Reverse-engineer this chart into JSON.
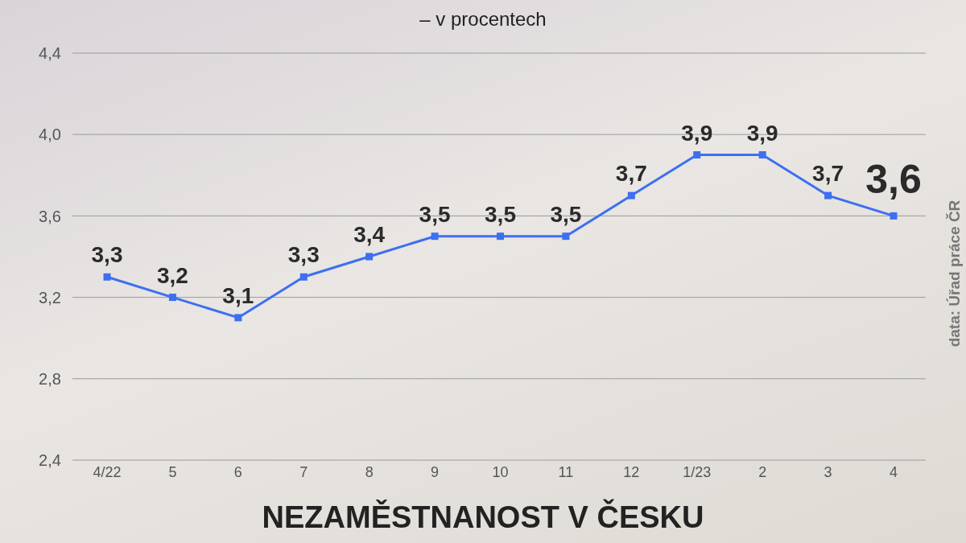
{
  "chart_data": {
    "type": "line",
    "title": "NEZAMĚSTNANOST V ČESKU",
    "subtitle": "– v procentech",
    "categories": [
      "4/22",
      "5",
      "6",
      "7",
      "8",
      "9",
      "10",
      "11",
      "12",
      "1/23",
      "2",
      "3",
      "4"
    ],
    "series": [
      {
        "color": "#3d6ff0",
        "values": [
          3.3,
          3.2,
          3.1,
          3.3,
          3.4,
          3.5,
          3.5,
          3.5,
          3.7,
          3.9,
          3.9,
          3.7,
          3.6
        ],
        "value_labels": [
          "3,3",
          "3,2",
          "3,1",
          "3,3",
          "3,4",
          "3,5",
          "3,5",
          "3,5",
          "3,7",
          "3,9",
          "3,9",
          "3,7",
          "3,6"
        ]
      }
    ],
    "ylim": [
      2.4,
      4.4
    ],
    "yticks": [
      {
        "value": 2.4,
        "label": "2,4"
      },
      {
        "value": 2.8,
        "label": "2,8"
      },
      {
        "value": 3.2,
        "label": "3,2"
      },
      {
        "value": 3.6,
        "label": "3,6"
      },
      {
        "value": 4.0,
        "label": "4,0"
      },
      {
        "value": 4.4,
        "label": "4,4"
      }
    ],
    "grid": "y",
    "legend": false,
    "marker": "square",
    "line_style": "solid",
    "annotations": [
      "data: Úřad práce ČR"
    ]
  }
}
